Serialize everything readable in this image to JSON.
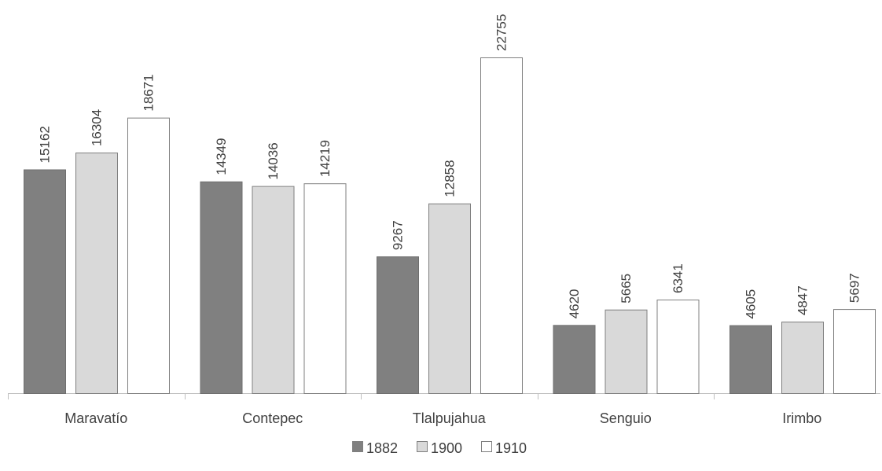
{
  "chart_data": {
    "type": "bar",
    "categories": [
      "Maravatío",
      "Contepec",
      "Tlalpujahua",
      "Senguio",
      "Irimbo"
    ],
    "series": [
      {
        "name": "1882",
        "values": [
          15162,
          14349,
          9267,
          4620,
          4605
        ],
        "color": "#808080"
      },
      {
        "name": "1900",
        "values": [
          16304,
          14036,
          12858,
          5665,
          4847
        ],
        "color": "#d9d9d9"
      },
      {
        "name": "1910",
        "values": [
          18671,
          14219,
          22755,
          6341,
          5697
        ],
        "color": "#ffffff"
      }
    ],
    "title": "",
    "xlabel": "",
    "ylabel": "",
    "ylim": [
      0,
      22755
    ],
    "grid": false,
    "legend_position": "bottom",
    "data_labels": true,
    "data_label_rotation": "vertical"
  }
}
